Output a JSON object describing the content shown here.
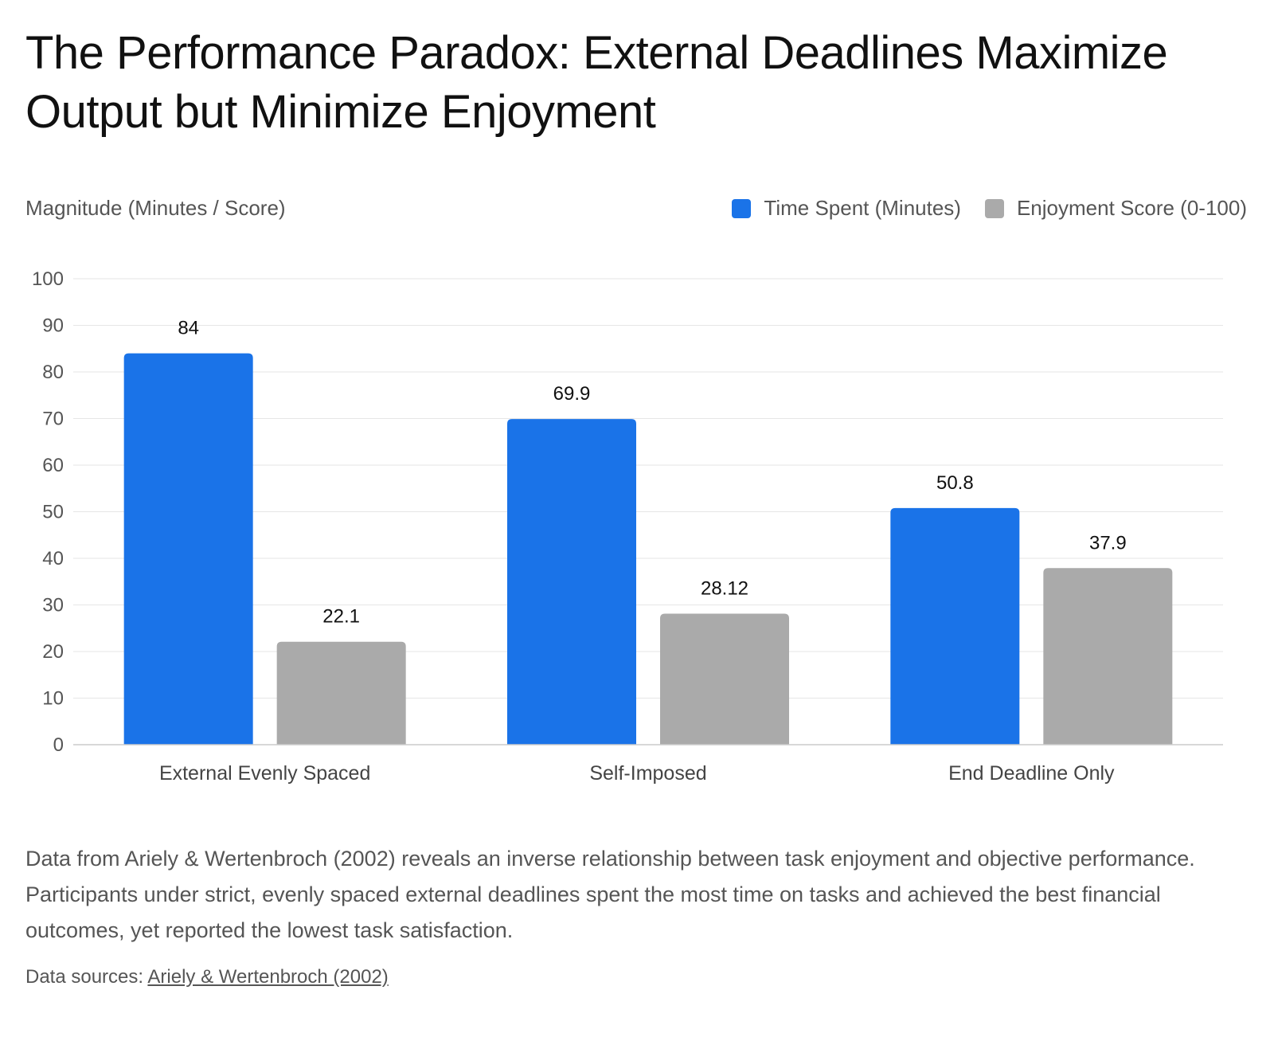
{
  "title": "The Performance Paradox: External Deadlines Maximize Output but Minimize Enjoyment",
  "y_axis_title": "Magnitude (Minutes / Score)",
  "legend": [
    {
      "label": "Time Spent (Minutes)",
      "color": "#1a73e8"
    },
    {
      "label": "Enjoyment Score (0-100)",
      "color": "#aaaaaa"
    }
  ],
  "chart_data": {
    "type": "bar",
    "title": "The Performance Paradox: External Deadlines Maximize Output but Minimize Enjoyment",
    "xlabel": "",
    "ylabel": "Magnitude (Minutes / Score)",
    "categories": [
      "External Evenly Spaced",
      "Self-Imposed",
      "End Deadline Only"
    ],
    "series": [
      {
        "name": "Time Spent (Minutes)",
        "values": [
          84,
          69.9,
          50.8
        ],
        "labels": [
          "84",
          "69.9",
          "50.8"
        ],
        "color": "#1a73e8"
      },
      {
        "name": "Enjoyment Score (0-100)",
        "values": [
          22.1,
          28.12,
          37.9
        ],
        "labels": [
          "22.1",
          "28.12",
          "37.9"
        ],
        "color": "#aaaaaa"
      }
    ],
    "ylim": [
      0,
      100
    ],
    "yticks": [
      0,
      10,
      20,
      30,
      40,
      50,
      60,
      70,
      80,
      90,
      100
    ],
    "grid": true,
    "legend_position": "top-right"
  },
  "description": "Data from Ariely & Wertenbroch (2002) reveals an inverse relationship between task enjoyment and objective performance. Participants under strict, evenly spaced external deadlines spent the most time on tasks and achieved the best financial outcomes, yet reported the lowest task satisfaction.",
  "sources": {
    "prefix": "Data sources: ",
    "link_text": "Ariely & Wertenbroch (2002)"
  }
}
